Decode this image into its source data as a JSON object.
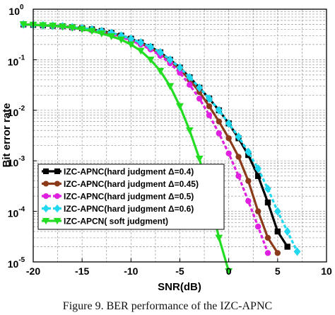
{
  "caption": "Figure 9. BER performance of the IZC-APNC",
  "chart_data": {
    "type": "line",
    "xlabel": "SNR(dB)",
    "ylabel": "Bit error rate",
    "xlim": [
      -20,
      10
    ],
    "ylim": [
      1e-05,
      1
    ],
    "yscale": "log",
    "xticks": [
      -20,
      -15,
      -10,
      -5,
      0,
      5,
      10
    ],
    "ytick_exponents": [
      0,
      -1,
      -2,
      -3,
      -4,
      -5
    ],
    "grid": true,
    "legend_position": "bottom-left",
    "series": [
      {
        "name": "IZC-APNC(hard judgment Δ=0.4)",
        "color": "#000000",
        "marker": "square",
        "dashed": false,
        "x": [
          -21,
          -20,
          -19,
          -18,
          -17,
          -16,
          -15,
          -14,
          -13,
          -12,
          -11,
          -10,
          -9,
          -8,
          -7,
          -6,
          -5,
          -4,
          -3,
          -2,
          -1,
          0,
          1,
          2,
          3,
          4,
          5,
          6
        ],
        "y": [
          0.5,
          0.49,
          0.48,
          0.47,
          0.46,
          0.44,
          0.42,
          0.4,
          0.37,
          0.34,
          0.3,
          0.26,
          0.22,
          0.18,
          0.14,
          0.1,
          0.07,
          0.045,
          0.028,
          0.017,
          0.01,
          0.0055,
          0.0028,
          0.0013,
          0.0005,
          0.00015,
          4e-05,
          2e-05
        ]
      },
      {
        "name": "IZC-APNC(hard judgment Δ=0.45)",
        "color": "#8B3A1A",
        "marker": "circle",
        "dashed": false,
        "x": [
          -21,
          -20,
          -19,
          -18,
          -17,
          -16,
          -15,
          -14,
          -13,
          -12,
          -11,
          -10,
          -9,
          -8,
          -7,
          -6,
          -5,
          -4,
          -3,
          -2,
          -1,
          0,
          1,
          2,
          3,
          4,
          5
        ],
        "y": [
          0.5,
          0.49,
          0.48,
          0.47,
          0.46,
          0.44,
          0.42,
          0.39,
          0.36,
          0.33,
          0.29,
          0.25,
          0.21,
          0.17,
          0.13,
          0.095,
          0.065,
          0.04,
          0.023,
          0.012,
          0.006,
          0.0028,
          0.0012,
          0.0004,
          0.0001,
          3e-05,
          1.5e-05
        ]
      },
      {
        "name": "IZC-APNC(hard judgment Δ=0.5)",
        "color": "#E020E0",
        "marker": "circle",
        "dashed": true,
        "x": [
          -21,
          -20,
          -19,
          -18,
          -17,
          -16,
          -15,
          -14,
          -13,
          -12,
          -11,
          -10,
          -9,
          -8,
          -7,
          -6,
          -5,
          -4,
          -3,
          -2,
          -1,
          0,
          1,
          2,
          3,
          4
        ],
        "y": [
          0.5,
          0.49,
          0.48,
          0.47,
          0.45,
          0.43,
          0.41,
          0.38,
          0.35,
          0.32,
          0.28,
          0.24,
          0.2,
          0.16,
          0.12,
          0.085,
          0.055,
          0.032,
          0.017,
          0.008,
          0.0035,
          0.0014,
          0.0005,
          0.00016,
          5e-05,
          1.5e-05
        ]
      },
      {
        "name": "IZC-APNC(hard judgment Δ=0.6)",
        "color": "#20D8F0",
        "marker": "diamond",
        "dashed": true,
        "x": [
          -21,
          -20,
          -19,
          -18,
          -17,
          -16,
          -15,
          -14,
          -13,
          -12,
          -11,
          -10,
          -9,
          -8,
          -7,
          -6,
          -5,
          -4,
          -3,
          -2,
          -1,
          0,
          1,
          2,
          3,
          4,
          5,
          6,
          7
        ],
        "y": [
          0.5,
          0.49,
          0.48,
          0.47,
          0.46,
          0.44,
          0.42,
          0.4,
          0.37,
          0.34,
          0.3,
          0.26,
          0.22,
          0.18,
          0.14,
          0.1,
          0.07,
          0.045,
          0.028,
          0.017,
          0.01,
          0.0055,
          0.003,
          0.0015,
          0.0007,
          0.00028,
          0.0001,
          4e-05,
          1.6e-05
        ]
      },
      {
        "name": "IZC-APCN( soft judgment)",
        "color": "#22DD22",
        "marker": "triangle-down",
        "dashed": false,
        "x": [
          -21,
          -20,
          -19,
          -18,
          -17,
          -16,
          -15,
          -14,
          -13,
          -12,
          -11,
          -10,
          -9,
          -8,
          -7,
          -6,
          -5,
          -4,
          -3,
          -2,
          -1,
          0
        ],
        "y": [
          0.5,
          0.49,
          0.48,
          0.47,
          0.45,
          0.43,
          0.4,
          0.37,
          0.33,
          0.29,
          0.25,
          0.2,
          0.15,
          0.1,
          0.06,
          0.03,
          0.012,
          0.004,
          0.0011,
          0.0002,
          3e-05,
          6.5e-06
        ]
      }
    ]
  }
}
